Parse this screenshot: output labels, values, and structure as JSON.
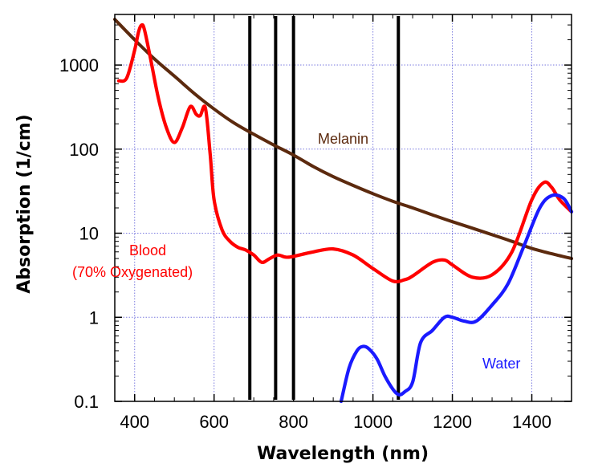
{
  "chart_data": {
    "type": "line",
    "title": "",
    "xlabel": "Wavelength (nm)",
    "ylabel": "Absorption (1/cm)",
    "xlim": [
      350,
      1500
    ],
    "ylim": [
      0.1,
      4000
    ],
    "yscale": "log",
    "grid": true,
    "x_ticks": [
      400,
      600,
      800,
      1000,
      1200,
      1400
    ],
    "x_tick_labels": [
      "400",
      "600",
      "800",
      "1000",
      "1200",
      "1400"
    ],
    "y_ticks": [
      0.1,
      1,
      10,
      100,
      1000
    ],
    "y_tick_labels": [
      "0.1",
      "1",
      "10",
      "100",
      "1000"
    ],
    "x_minor_step": 50,
    "vertical_lines": [
      690,
      755,
      800,
      1064
    ],
    "series": [
      {
        "name": "Melanin",
        "color": "#5c2a0e",
        "x": [
          350,
          400,
          450,
          500,
          550,
          600,
          650,
          700,
          750,
          800,
          850,
          900,
          950,
          1000,
          1050,
          1100,
          1150,
          1200,
          1250,
          1300,
          1350,
          1400,
          1450,
          1500
        ],
        "y": [
          3500,
          2000,
          1180,
          740,
          460,
          300,
          205,
          150,
          112,
          85,
          62,
          47,
          37,
          29.5,
          24,
          20,
          16.5,
          13.7,
          11.5,
          9.6,
          8,
          6.6,
          5.7,
          5
        ]
      },
      {
        "name": "Blood (70% Oxygenated)",
        "color": "#ff0000",
        "x": [
          360,
          380,
          400,
          410,
          418,
          425,
          440,
          460,
          480,
          500,
          520,
          540,
          555,
          565,
          578,
          590,
          600,
          620,
          640,
          660,
          680,
          700,
          720,
          740,
          760,
          780,
          800,
          850,
          900,
          950,
          1000,
          1050,
          1080,
          1100,
          1150,
          1180,
          1200,
          1250,
          1300,
          1350,
          1400,
          1430,
          1450,
          1470,
          1500
        ],
        "y": [
          650,
          700,
          1500,
          2500,
          3000,
          2600,
          1200,
          400,
          180,
          120,
          180,
          320,
          260,
          250,
          310,
          90,
          25,
          11,
          8,
          6.8,
          6.3,
          5.5,
          4.5,
          5,
          5.5,
          5.2,
          5.3,
          6,
          6.5,
          5.5,
          3.8,
          2.7,
          2.8,
          3.1,
          4.5,
          4.8,
          4.2,
          3,
          3.2,
          6,
          25,
          40,
          35,
          25,
          18
        ]
      },
      {
        "name": "Water",
        "color": "#1a1aff",
        "x": [
          920,
          940,
          960,
          975,
          990,
          1010,
          1030,
          1050,
          1065,
          1080,
          1100,
          1120,
          1150,
          1180,
          1200,
          1230,
          1260,
          1300,
          1340,
          1380,
          1420,
          1450,
          1480,
          1500
        ],
        "y": [
          0.1,
          0.25,
          0.4,
          0.45,
          0.42,
          0.32,
          0.2,
          0.14,
          0.12,
          0.13,
          0.17,
          0.5,
          0.7,
          1.0,
          1.0,
          0.9,
          0.9,
          1.4,
          2.5,
          7,
          20,
          28,
          26,
          18
        ]
      }
    ],
    "annotations": {
      "melanin": "Melanin",
      "blood_line1": "Blood",
      "blood_line2": "(70% Oxygenated)",
      "water": "Water"
    }
  }
}
